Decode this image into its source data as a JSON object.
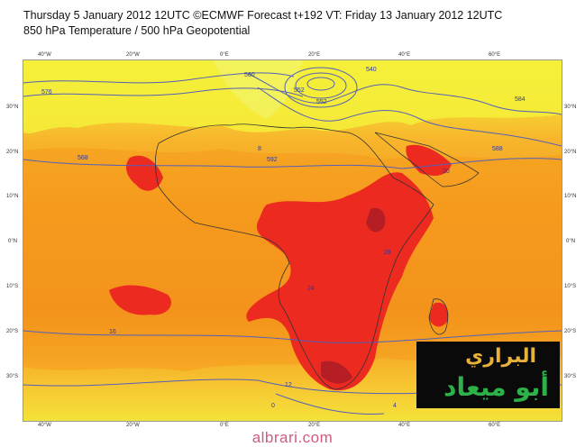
{
  "header": {
    "line1": "Thursday 5 January 2012 12UTC ©ECMWF Forecast t+192 VT: Friday 13 January 2012 12UTC",
    "line2": "850 hPa Temperature / 500 hPa Geopotential"
  },
  "axes": {
    "lon_labels": [
      "40°W",
      "20°W",
      "0°E",
      "20°E",
      "40°E",
      "60°E"
    ],
    "lat_labels": [
      "30°N",
      "20°N",
      "10°N",
      "0°N",
      "10°S",
      "20°S",
      "30°S"
    ]
  },
  "palette": {
    "yellow": "#f4f03a",
    "lightorange": "#f7c531",
    "orange": "#f59a1e",
    "darkorange": "#f07a16",
    "red": "#ec2a20",
    "darkred": "#b41e24",
    "contour": "#5560b8"
  },
  "contour_labels": [
    "576",
    "552",
    "584",
    "588",
    "592",
    "552",
    "540",
    "560",
    "568",
    "12",
    "16",
    "20",
    "24",
    "28",
    "8",
    "4",
    "0"
  ],
  "logo": {
    "line1": "البراري",
    "line2": "أبو ميعاد"
  },
  "footer": {
    "site": "albrari.com"
  }
}
